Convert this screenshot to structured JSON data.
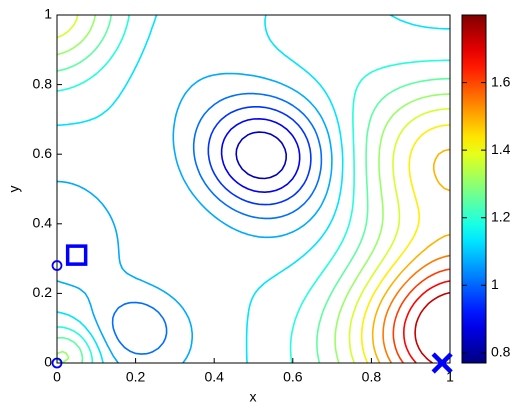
{
  "chart_data": {
    "type": "contour",
    "x_label": "x",
    "y_label": "y",
    "xlim": [
      0,
      1
    ],
    "ylim": [
      0,
      1
    ],
    "xticks": [
      0,
      0.2,
      0.4,
      0.6,
      0.8,
      1
    ],
    "yticks": [
      0,
      0.2,
      0.4,
      0.6,
      0.8,
      1
    ],
    "levels": [
      0.83,
      0.89,
      0.95,
      1.01,
      1.07,
      1.13,
      1.19,
      1.25,
      1.31,
      1.37,
      1.43,
      1.49,
      1.55,
      1.61,
      1.67,
      1.73
    ],
    "colormap": "jet",
    "clim": [
      0.77,
      1.8
    ],
    "cticks": [
      0.8,
      1,
      1.2,
      1.4,
      1.6
    ],
    "markers": [
      {
        "shape": "square",
        "x": 0.05,
        "y": 0.31,
        "color": "#0000ff"
      },
      {
        "shape": "circle",
        "x": 0,
        "y": 0.28,
        "color": "#0000ff"
      },
      {
        "shape": "circle",
        "x": 0,
        "y": 0,
        "color": "#0000ff"
      },
      {
        "shape": "cross",
        "x": 0.98,
        "y": 0.0,
        "color": "#0000ff"
      }
    ]
  }
}
